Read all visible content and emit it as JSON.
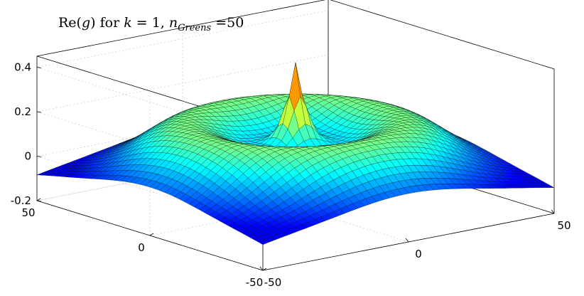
{
  "chart_data": {
    "type": "surface",
    "title": {
      "prefix": "Re(",
      "func": "g",
      "mid": ") for ",
      "k": "k",
      "eq": " = 1, ",
      "n": "n",
      "sub": "Greens",
      "tail": " =50"
    },
    "xlim": [
      -50,
      50
    ],
    "ylim": [
      -50,
      50
    ],
    "zlim": [
      -0.2,
      0.45
    ],
    "x_ticks": [
      "-50",
      "0",
      "50"
    ],
    "y_ticks": [
      "-50",
      "0",
      "50"
    ],
    "z_ticks": [
      "-0.2",
      "0",
      "0.2",
      "0.4"
    ],
    "z_tick_values": [
      -0.2,
      0,
      0.2,
      0.4
    ],
    "x_tick_values": [
      -50,
      0,
      50
    ],
    "y_tick_values": [
      -50,
      0,
      50
    ],
    "peak": {
      "x": 0,
      "y": 0,
      "z": 0.48
    },
    "edge_value": 0,
    "corner_value": -0.01,
    "trough_value": -0.2,
    "grid": true,
    "colormap": [
      "#00008f",
      "#0000ff",
      "#00ffff",
      "#ffff00",
      "#ff0000"
    ]
  }
}
